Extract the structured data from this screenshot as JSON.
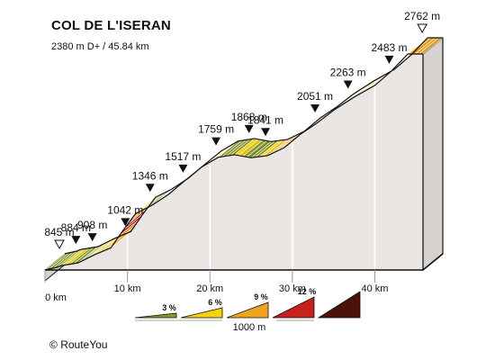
{
  "chart_data": {
    "type": "area",
    "title": "COL DE L'ISERAN",
    "subtitle": "2380 m D+ / 45.84 km",
    "x_unit": "km",
    "y_unit": "m",
    "xlim": [
      0,
      45.84
    ],
    "ylim": [
      845,
      2762
    ],
    "x_ticks": [
      {
        "value": 0,
        "label": "0 km"
      },
      {
        "value": 10,
        "label": "10 km"
      },
      {
        "value": 20,
        "label": "20 km"
      },
      {
        "value": 30,
        "label": "30 km"
      },
      {
        "value": 40,
        "label": "40 km"
      }
    ],
    "profile": [
      {
        "x": 0,
        "y": 845
      },
      {
        "x": 1.5,
        "y": 870
      },
      {
        "x": 2,
        "y": 884
      },
      {
        "x": 4,
        "y": 908
      },
      {
        "x": 6,
        "y": 980
      },
      {
        "x": 8,
        "y": 1042
      },
      {
        "x": 9.5,
        "y": 1200
      },
      {
        "x": 11,
        "y": 1346
      },
      {
        "x": 13,
        "y": 1420
      },
      {
        "x": 15,
        "y": 1517
      },
      {
        "x": 17,
        "y": 1640
      },
      {
        "x": 19,
        "y": 1759
      },
      {
        "x": 21,
        "y": 1845
      },
      {
        "x": 23,
        "y": 1868
      },
      {
        "x": 25,
        "y": 1841
      },
      {
        "x": 27,
        "y": 1860
      },
      {
        "x": 29,
        "y": 1930
      },
      {
        "x": 31,
        "y": 2051
      },
      {
        "x": 33,
        "y": 2150
      },
      {
        "x": 35,
        "y": 2263
      },
      {
        "x": 37.5,
        "y": 2380
      },
      {
        "x": 40,
        "y": 2483
      },
      {
        "x": 42,
        "y": 2610
      },
      {
        "x": 44,
        "y": 2762
      },
      {
        "x": 45.84,
        "y": 2762
      }
    ],
    "markers": [
      {
        "x": 0,
        "label": "845 m",
        "type": "start"
      },
      {
        "x": 2,
        "label": "884 m",
        "type": "waypoint"
      },
      {
        "x": 4,
        "label": "908 m",
        "type": "waypoint"
      },
      {
        "x": 8,
        "label": "1042 m",
        "type": "waypoint"
      },
      {
        "x": 11,
        "label": "1346 m",
        "type": "waypoint"
      },
      {
        "x": 15,
        "label": "1517 m",
        "type": "waypoint"
      },
      {
        "x": 19,
        "label": "1759 m",
        "type": "waypoint"
      },
      {
        "x": 23,
        "label": "1868 m",
        "type": "waypoint"
      },
      {
        "x": 25,
        "label": "1841 m",
        "type": "waypoint"
      },
      {
        "x": 31,
        "label": "2051 m",
        "type": "waypoint"
      },
      {
        "x": 35,
        "label": "2263 m",
        "type": "waypoint"
      },
      {
        "x": 40,
        "label": "2483 m",
        "type": "waypoint"
      },
      {
        "x": 44,
        "label": "2762 m",
        "type": "end"
      }
    ],
    "gradient_segments": [
      {
        "from": 0,
        "to": 2,
        "gradient": 2
      },
      {
        "from": 2,
        "to": 3,
        "gradient": 4
      },
      {
        "from": 3,
        "to": 5,
        "gradient": 2
      },
      {
        "from": 5,
        "to": 7,
        "gradient": 5
      },
      {
        "from": 7,
        "to": 9,
        "gradient": 7
      },
      {
        "from": 9,
        "to": 10,
        "gradient": 10
      },
      {
        "from": 10,
        "to": 11,
        "gradient": 8
      },
      {
        "from": 11,
        "to": 12,
        "gradient": 5
      },
      {
        "from": 12,
        "to": 14,
        "gradient": 2
      },
      {
        "from": 14,
        "to": 16,
        "gradient": 5
      },
      {
        "from": 16,
        "to": 18,
        "gradient": 7
      },
      {
        "from": 18,
        "to": 19,
        "gradient": 5
      },
      {
        "from": 19,
        "to": 21,
        "gradient": 4
      },
      {
        "from": 21,
        "to": 23,
        "gradient": 2
      },
      {
        "from": 23,
        "to": 24,
        "gradient": 4
      },
      {
        "from": 24,
        "to": 26,
        "gradient": 1
      },
      {
        "from": 26,
        "to": 27,
        "gradient": 4
      },
      {
        "from": 27,
        "to": 29,
        "gradient": 7
      },
      {
        "from": 29,
        "to": 31,
        "gradient": 5
      },
      {
        "from": 31,
        "to": 32,
        "gradient": 6
      },
      {
        "from": 32,
        "to": 34,
        "gradient": 2
      },
      {
        "from": 34,
        "to": 36,
        "gradient": 6
      },
      {
        "from": 36,
        "to": 39,
        "gradient": 5
      },
      {
        "from": 39,
        "to": 41,
        "gradient": 6
      },
      {
        "from": 41,
        "to": 45.84,
        "gradient": 7
      }
    ],
    "legend": {
      "bins": [
        {
          "label": "3 %",
          "color": "#8a9a2a"
        },
        {
          "label": "6 %",
          "color": "#f5d20e"
        },
        {
          "label": "9 %",
          "color": "#f0a31f"
        },
        {
          "label": "12 %",
          "color": "#c8201e"
        },
        {
          "label": "",
          "color": "#4a120a"
        }
      ],
      "scale_label": "1000 m"
    },
    "colors": {
      "side_wall": "#eae6e3",
      "side_shadow": "#d6d2cf",
      "outline": "#111111",
      "depth_edge": "#a7a3a0"
    }
  },
  "footer": {
    "copyright_icon": "©",
    "brand": "RouteYou"
  }
}
